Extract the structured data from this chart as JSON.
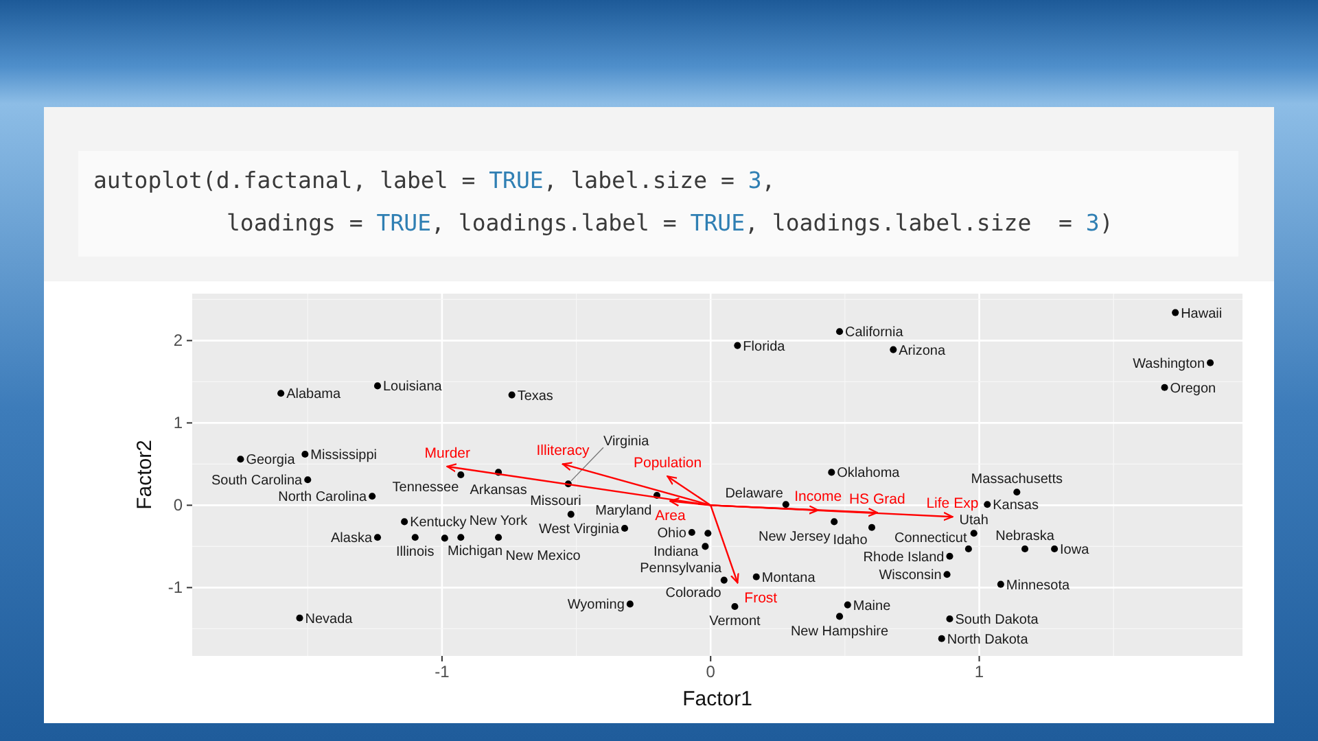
{
  "chart_data": {
    "type": "scatter",
    "xlabel": "Factor1",
    "ylabel": "Factor2",
    "annotations": [
      "autoplot(d.factanal, label = TRUE, label.size = 3,",
      "loadings = TRUE, loadings.label = TRUE, loadings.label.size  = 3)",
      {
        "text": "Alabama",
        "x": -1.6,
        "y": 1.36
      },
      {
        "text": "Alaska",
        "x": -1.24,
        "y": -0.39
      },
      {
        "text": "Arizona",
        "x": 0.68,
        "y": 1.89
      },
      {
        "text": "Arkansas",
        "x": -0.79,
        "y": 0.4
      },
      {
        "text": "California",
        "x": 0.48,
        "y": 2.11
      },
      {
        "text": "Colorado",
        "x": 0.05,
        "y": -0.91
      },
      {
        "text": "Connecticut",
        "x": 0.96,
        "y": -0.53
      },
      {
        "text": "Delaware",
        "x": 0.28,
        "y": 0.01
      },
      {
        "text": "Florida",
        "x": 0.1,
        "y": 1.94
      },
      {
        "text": "Georgia",
        "x": -1.75,
        "y": 0.56
      },
      {
        "text": "Hawaii",
        "x": 1.73,
        "y": 2.34
      },
      {
        "text": "Idaho",
        "x": 0.6,
        "y": -0.27
      },
      {
        "text": "Illinois",
        "x": -1.1,
        "y": -0.39
      },
      {
        "text": "Indiana",
        "x": -0.01,
        "y": -0.34
      },
      {
        "text": "Iowa",
        "x": 1.28,
        "y": -0.53
      },
      {
        "text": "Kansas",
        "x": 1.03,
        "y": 0.01
      },
      {
        "text": "Kentucky",
        "x": -1.14,
        "y": -0.2
      },
      {
        "text": "Louisiana",
        "x": -1.24,
        "y": 1.45
      },
      {
        "text": "Maine",
        "x": 0.51,
        "y": -1.21
      },
      {
        "text": "Maryland",
        "x": -0.2,
        "y": 0.12
      },
      {
        "text": "Massachusetts",
        "x": 1.14,
        "y": 0.16
      },
      {
        "text": "Michigan",
        "x": -0.99,
        "y": -0.4
      },
      {
        "text": "Minnesota",
        "x": 1.08,
        "y": -0.96
      },
      {
        "text": "Mississippi",
        "x": -1.51,
        "y": 0.62
      },
      {
        "text": "Missouri",
        "x": -0.52,
        "y": -0.11
      },
      {
        "text": "Montana",
        "x": 0.17,
        "y": -0.87
      },
      {
        "text": "Nebraska",
        "x": 1.17,
        "y": -0.53
      },
      {
        "text": "Nevada",
        "x": -1.53,
        "y": -1.37
      },
      {
        "text": "New Hampshire",
        "x": 0.48,
        "y": -1.35
      },
      {
        "text": "New Jersey",
        "x": 0.46,
        "y": -0.2
      },
      {
        "text": "New Mexico",
        "x": -0.79,
        "y": -0.39
      },
      {
        "text": "New York",
        "x": -0.93,
        "y": -0.39
      },
      {
        "text": "North Carolina",
        "x": -1.26,
        "y": 0.11
      },
      {
        "text": "North Dakota",
        "x": 0.86,
        "y": -1.62
      },
      {
        "text": "Ohio",
        "x": -0.07,
        "y": -0.33
      },
      {
        "text": "Oklahoma",
        "x": 0.45,
        "y": 0.4
      },
      {
        "text": "Oregon",
        "x": 1.69,
        "y": 1.43
      },
      {
        "text": "Pennsylvania",
        "x": -0.02,
        "y": -0.5
      },
      {
        "text": "Rhode Island",
        "x": 0.89,
        "y": -0.62
      },
      {
        "text": "South Carolina",
        "x": -1.5,
        "y": 0.31
      },
      {
        "text": "South Dakota",
        "x": 0.89,
        "y": -1.38
      },
      {
        "text": "Tennessee",
        "x": -0.93,
        "y": 0.37
      },
      {
        "text": "Texas",
        "x": -0.74,
        "y": 1.34
      },
      {
        "text": "Utah",
        "x": 0.98,
        "y": -0.34
      },
      {
        "text": "Vermont",
        "x": 0.09,
        "y": -1.23
      },
      {
        "text": "Virginia",
        "x": -0.53,
        "y": 0.26
      },
      {
        "text": "Washington",
        "x": 1.86,
        "y": 1.73
      },
      {
        "text": "West Virginia",
        "x": -0.32,
        "y": -0.28
      },
      {
        "text": "Wisconsin",
        "x": 0.88,
        "y": -0.84
      },
      {
        "text": "Wyoming",
        "x": -0.3,
        "y": -1.2
      }
    ],
    "series": [
      {
        "color": "#000000",
        "marker": "circle",
        "x": [
          -1.6,
          -1.24,
          0.68,
          -0.79,
          0.48,
          0.05,
          0.96,
          0.28,
          0.1,
          -1.75,
          1.73,
          0.6,
          -1.1,
          -0.01,
          1.28,
          1.03,
          -1.14,
          -1.24,
          0.51,
          -0.2,
          1.14,
          -0.99,
          1.08,
          -1.51,
          -0.52,
          0.17,
          1.17,
          -1.53,
          0.48,
          0.46,
          -0.79,
          -0.93,
          -1.26,
          0.86,
          -0.07,
          0.45,
          1.69,
          -0.02,
          0.89,
          -1.5,
          0.89,
          -0.93,
          -0.74,
          0.98,
          0.09,
          -0.53,
          1.86,
          -0.32,
          0.88,
          -0.3
        ],
        "values": [
          1.36,
          -0.39,
          1.89,
          0.4,
          2.11,
          -0.91,
          -0.53,
          0.01,
          1.94,
          0.56,
          2.34,
          -0.27,
          -0.39,
          -0.34,
          -0.53,
          0.01,
          -0.2,
          1.45,
          -1.21,
          0.12,
          0.16,
          -0.4,
          -0.96,
          0.62,
          -0.11,
          -0.87,
          -0.53,
          -1.37,
          -1.35,
          -0.2,
          -0.39,
          -0.39,
          0.11,
          -1.62,
          -0.33,
          0.4,
          1.43,
          -0.5,
          -0.62,
          0.31,
          -1.38,
          0.37,
          1.34,
          -0.34,
          -1.23,
          0.26,
          1.73,
          -0.28,
          -0.84,
          -1.2
        ]
      },
      {
        "type": "line",
        "name": "Population",
        "color": "#ff0000",
        "x": [
          0,
          -0.16
        ],
        "values": [
          0,
          0.35
        ]
      },
      {
        "type": "line",
        "name": "Income",
        "color": "#ff0000",
        "x": [
          0,
          0.4
        ],
        "values": [
          0,
          -0.06
        ]
      },
      {
        "type": "line",
        "name": "Illiteracy",
        "color": "#ff0000",
        "x": [
          0,
          -0.55
        ],
        "values": [
          0,
          0.5
        ]
      },
      {
        "type": "line",
        "name": "Life Exp",
        "color": "#ff0000",
        "x": [
          0,
          0.9
        ],
        "values": [
          0,
          -0.14
        ]
      },
      {
        "type": "line",
        "name": "Murder",
        "color": "#ff0000",
        "x": [
          0,
          -0.98
        ],
        "values": [
          0,
          0.47
        ]
      },
      {
        "type": "line",
        "name": "HS Grad",
        "color": "#ff0000",
        "x": [
          0,
          0.62
        ],
        "values": [
          0,
          -0.09
        ]
      },
      {
        "type": "line",
        "name": "Frost",
        "color": "#ff0000",
        "x": [
          0,
          0.1
        ],
        "values": [
          0,
          -0.94
        ]
      },
      {
        "type": "line",
        "name": "Area",
        "color": "#ff0000",
        "x": [
          0,
          -0.15
        ],
        "values": [
          0,
          0.05
        ]
      }
    ],
    "xlim": [
      -1.93,
      1.98
    ],
    "ylim": [
      -1.83,
      2.57
    ],
    "xticks": [
      -1,
      0,
      1
    ],
    "yticks": [
      -1,
      0,
      1,
      2
    ],
    "grid": true
  }
}
